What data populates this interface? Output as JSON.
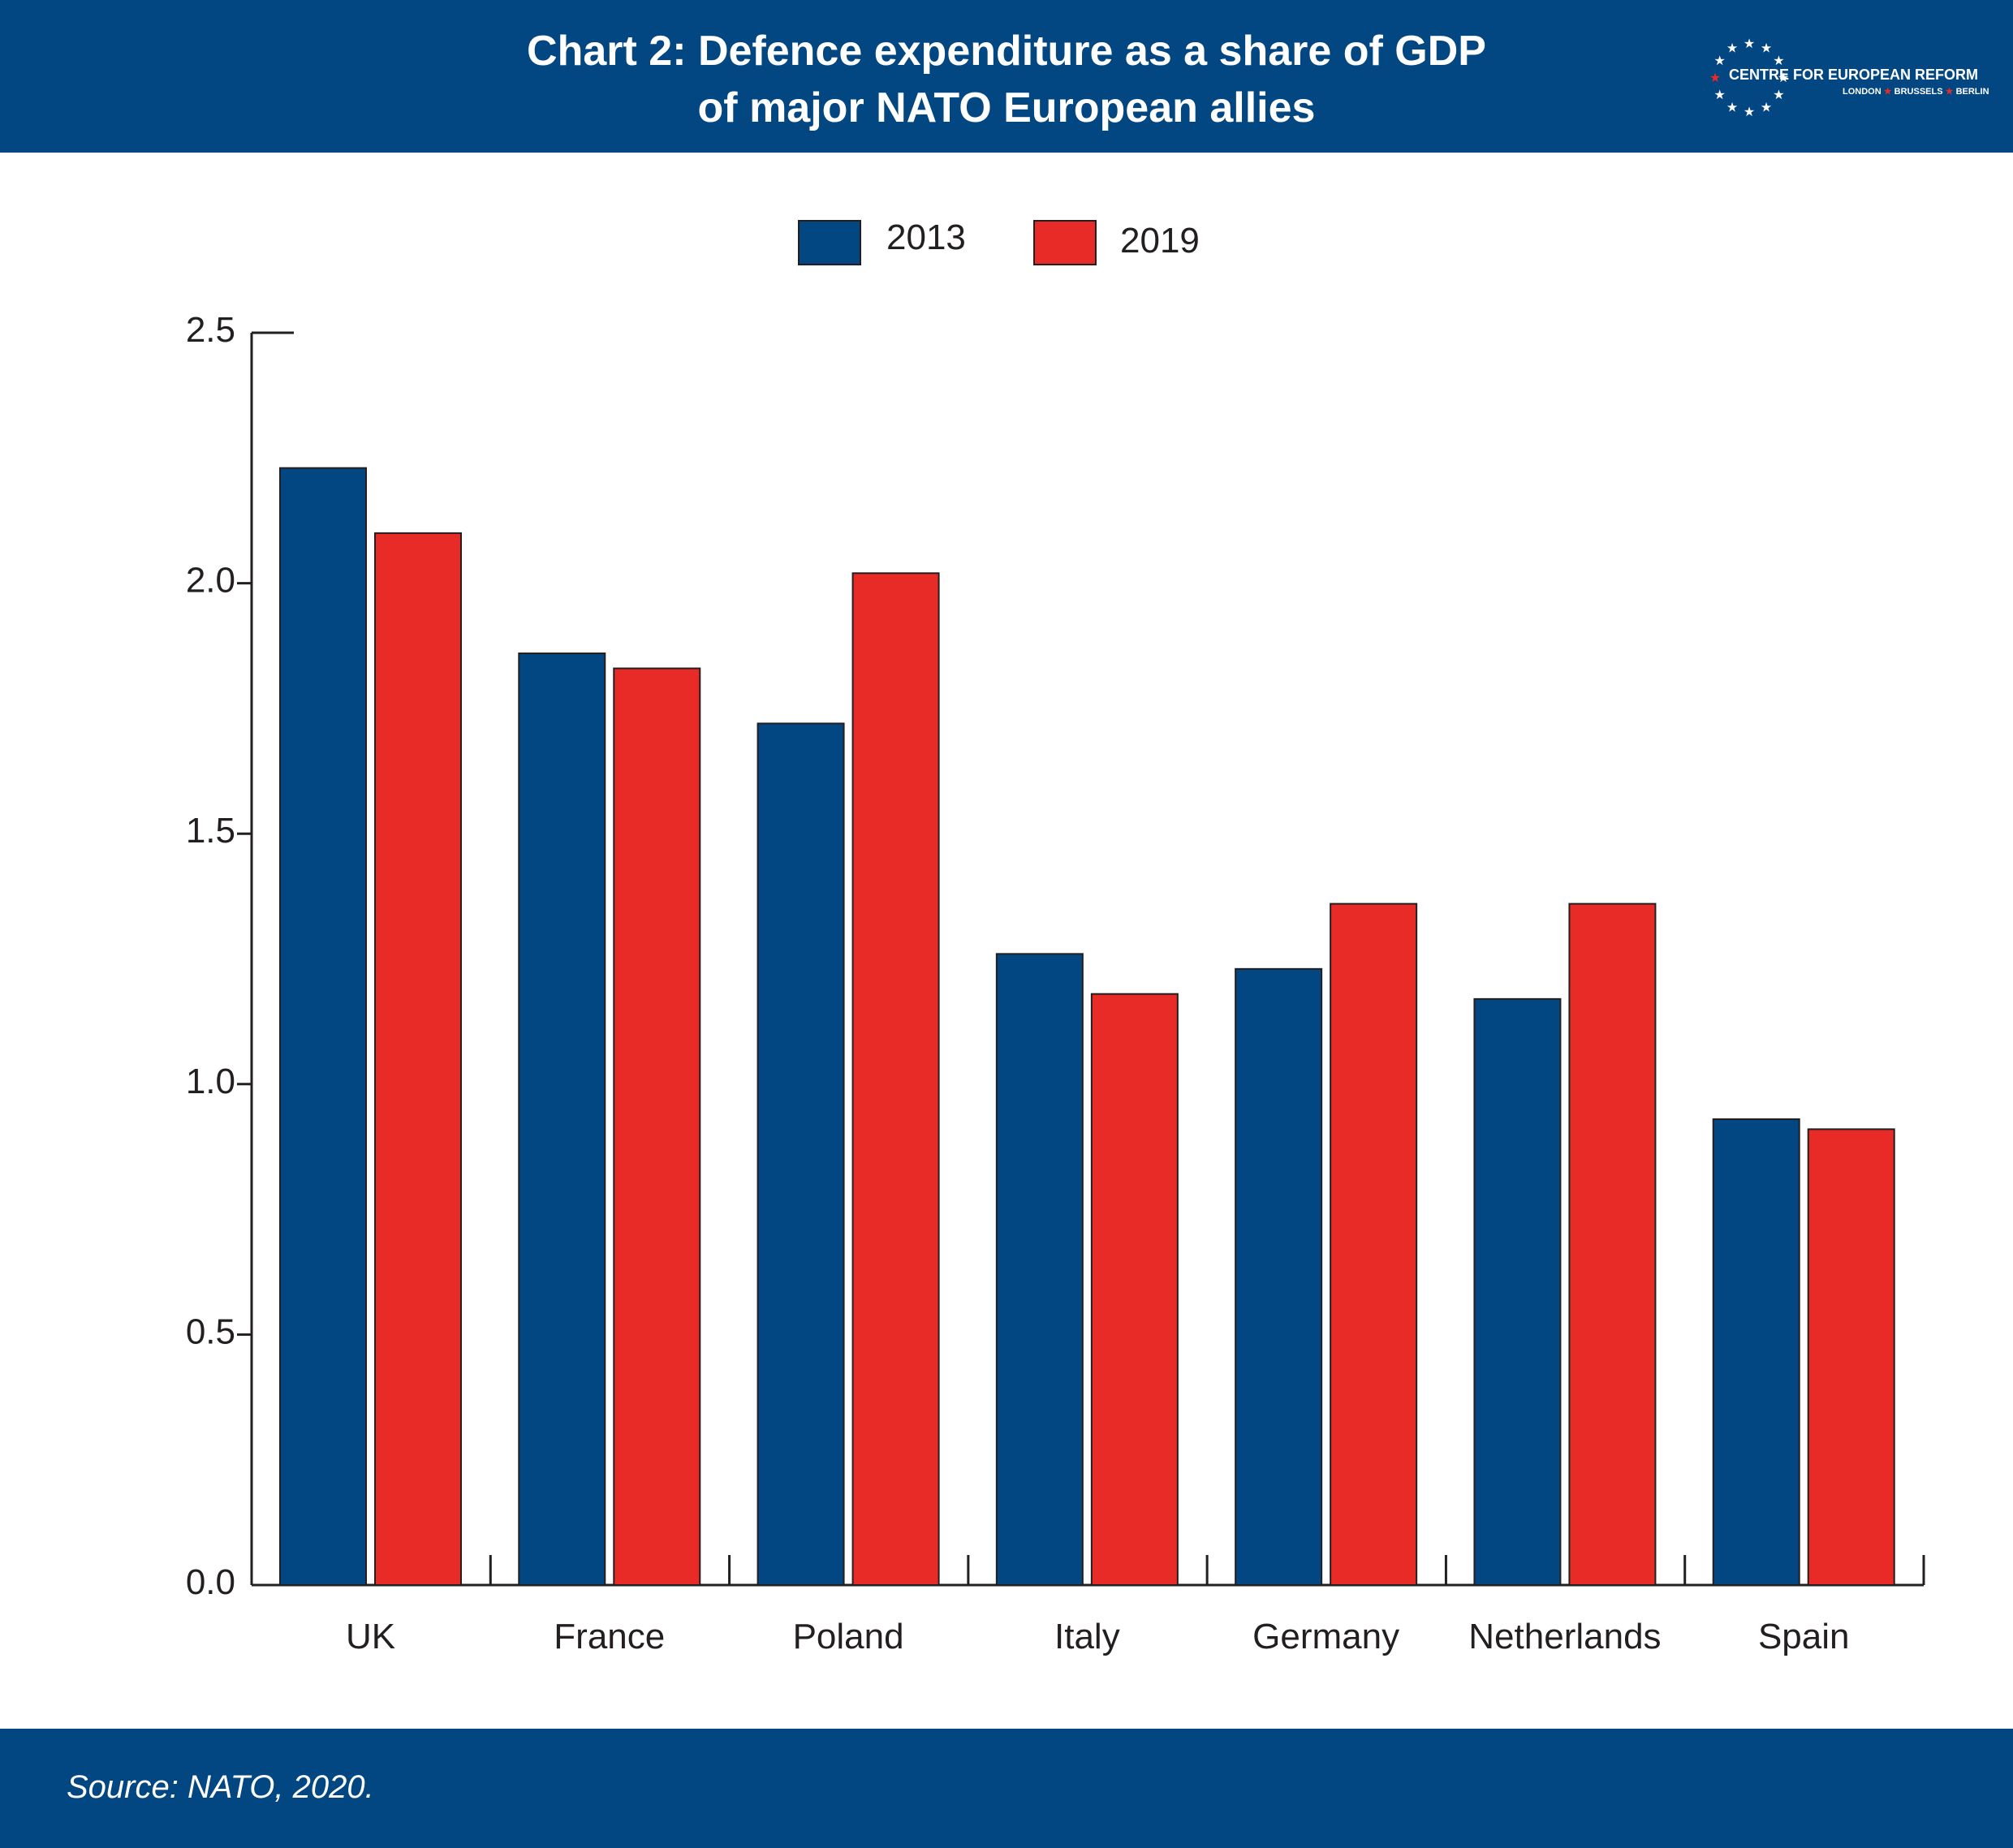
{
  "header": {
    "title_line1": "Chart 2: Defence expenditure as a share of GDP",
    "title_line2": "of major NATO European allies",
    "logo_name": "CENTRE FOR EUROPEAN REFORM",
    "logo_city1": "LONDON",
    "logo_city2": "BRUSSELS",
    "logo_city3": "BERLIN"
  },
  "footer": {
    "source": "Source: NATO, 2020."
  },
  "colors": {
    "brand_blue": "#024682",
    "series_2013": "#024682",
    "series_2019": "#e82b27"
  },
  "chart_data": {
    "type": "bar",
    "categories": [
      "UK",
      "France",
      "Poland",
      "Italy",
      "Germany",
      "Netherlands",
      "Spain"
    ],
    "series": [
      {
        "name": "2013",
        "color": "#024682",
        "values": [
          2.23,
          1.86,
          1.72,
          1.26,
          1.23,
          1.17,
          0.93
        ]
      },
      {
        "name": "2019",
        "color": "#e82b27",
        "values": [
          2.1,
          1.83,
          2.02,
          1.18,
          1.36,
          1.36,
          0.91
        ]
      }
    ],
    "yticks": [
      "0.0",
      "0.5",
      "1.0",
      "1.5",
      "2.0",
      "2.5"
    ],
    "ylim": [
      0,
      2.5
    ],
    "legend_position": "top-center",
    "grid": false
  }
}
